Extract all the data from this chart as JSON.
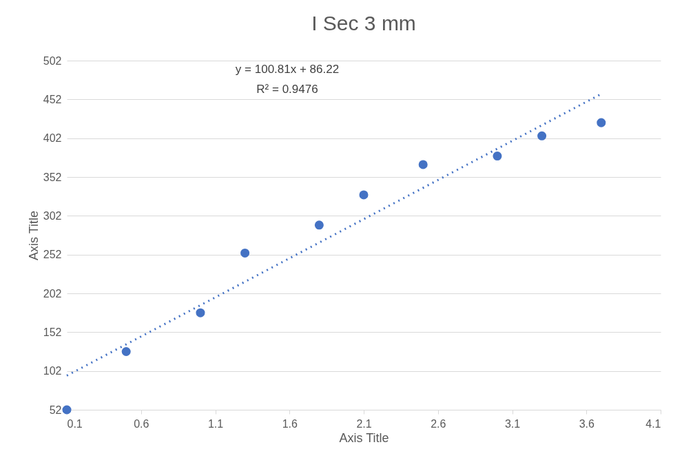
{
  "chart_data": {
    "type": "scatter",
    "title": "I Sec 3 mm",
    "xlabel": "Axis Title",
    "ylabel": "Axis Title",
    "xlim": [
      0.1,
      4.1
    ],
    "xticks": [
      0.1,
      0.6,
      1.1,
      1.6,
      2.1,
      2.6,
      3.1,
      3.6,
      4.1
    ],
    "ylim": [
      52,
      502
    ],
    "yticks": [
      52,
      102,
      152,
      202,
      252,
      302,
      352,
      402,
      452,
      502
    ],
    "grid": "y",
    "marker": "circle",
    "annotations": [
      "y = 100.81x + 86.22",
      "R² = 0.9476"
    ],
    "series": [
      {
        "color": "#4472c4",
        "x": [
          0.1,
          0.5,
          1.0,
          1.3,
          1.8,
          2.1,
          2.5,
          3.0,
          3.3,
          3.7
        ],
        "values": [
          52,
          127,
          177,
          254,
          290,
          329,
          368,
          379,
          405,
          422
        ]
      },
      {
        "type": "line",
        "line_style": "dotted",
        "marker": "none",
        "color": "#4472c4",
        "x": [
          0.1,
          3.7
        ],
        "values": [
          96,
          459
        ]
      }
    ]
  }
}
